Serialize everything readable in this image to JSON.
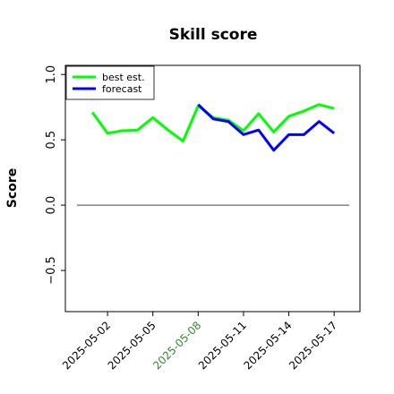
{
  "chart_data": {
    "type": "line",
    "title": "Skill score",
    "y_label": "Score",
    "x": [
      "2025-05-01",
      "2025-05-02",
      "2025-05-03",
      "2025-05-04",
      "2025-05-05",
      "2025-05-06",
      "2025-05-07",
      "2025-05-08",
      "2025-05-09",
      "2025-05-10",
      "2025-05-11",
      "2025-05-12",
      "2025-05-13",
      "2025-05-14",
      "2025-05-15",
      "2025-05-16",
      "2025-05-17"
    ],
    "series": [
      {
        "name": "best est.",
        "color": "#00ff00",
        "values": [
          0.71,
          0.55,
          0.57,
          0.575,
          0.67,
          0.575,
          0.49,
          0.76,
          0.67,
          0.65,
          0.57,
          0.7,
          0.56,
          0.68,
          0.72,
          0.77,
          0.74
        ]
      },
      {
        "name": "forecast",
        "color": "#0000ff",
        "values": [
          null,
          null,
          null,
          null,
          null,
          null,
          null,
          0.77,
          0.66,
          0.64,
          0.54,
          0.575,
          0.42,
          0.54,
          0.54,
          0.64,
          0.55
        ]
      }
    ],
    "xlim": [
      "2025-04-29T05:00:00",
      "2025-05-18T17:00:00"
    ],
    "xticks": [
      "2025-05-02",
      "2025-05-05",
      "2025-05-08",
      "2025-05-11",
      "2025-05-14",
      "2025-05-17"
    ],
    "highlight_xtick": "2025-05-08",
    "highlight_color": "#2e8b2e",
    "ylim": [
      -0.815,
      1.07
    ],
    "yticks": [
      {
        "value": -0.5,
        "label": "−0.5"
      },
      0.0,
      0.5,
      1.0
    ],
    "hline": 0,
    "legend": "upper left"
  }
}
